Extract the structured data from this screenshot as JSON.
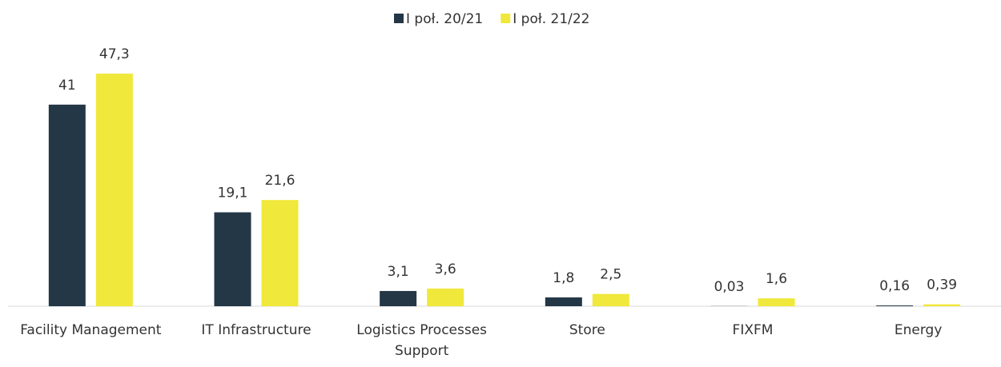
{
  "chart_data": {
    "type": "bar",
    "categories": [
      "Facility Management",
      "IT Infrastructure",
      "Logistics Processes Support",
      "Store",
      "FIXFM",
      "Energy"
    ],
    "series": [
      {
        "name": "I poł. 20/21",
        "color": "#243746",
        "values": [
          41,
          19.1,
          3.1,
          1.8,
          0.03,
          0.16
        ],
        "value_labels": [
          "41",
          "19,1",
          "3,1",
          "1,8",
          "0,03",
          "0,16"
        ]
      },
      {
        "name": "I poł. 21/22",
        "color": "#f0e83a",
        "values": [
          47.3,
          21.6,
          3.6,
          2.5,
          1.6,
          0.39
        ],
        "value_labels": [
          "47,3",
          "21,6",
          "3,6",
          "2,5",
          "1,6",
          "0,39"
        ]
      }
    ],
    "ylim": [
      0,
      50
    ],
    "legend": "top"
  }
}
